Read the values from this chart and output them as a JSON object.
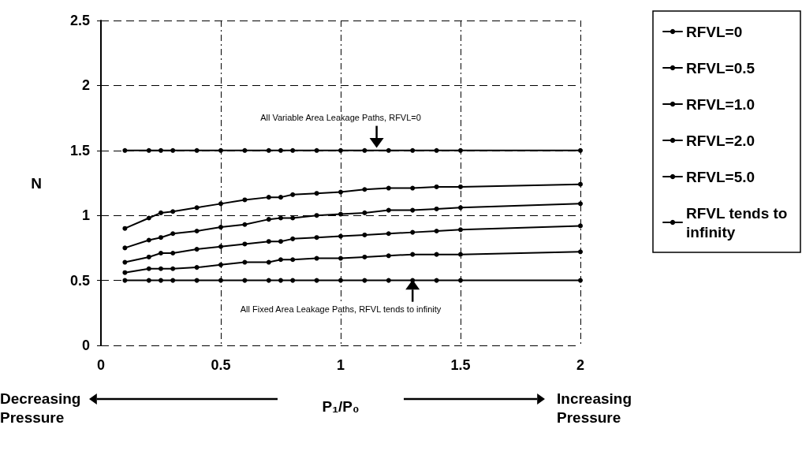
{
  "chart_data": {
    "type": "line",
    "xlabel": "P₁/P₀",
    "ylabel": "N",
    "x": [
      0.1,
      0.2,
      0.25,
      0.3,
      0.4,
      0.5,
      0.6,
      0.7,
      0.75,
      0.8,
      0.9,
      1.0,
      1.1,
      1.2,
      1.3,
      1.4,
      1.5,
      2.0
    ],
    "series": [
      {
        "name": "RFVL=0",
        "color": "#000000",
        "values": [
          1.5,
          1.5,
          1.5,
          1.5,
          1.5,
          1.5,
          1.5,
          1.5,
          1.5,
          1.5,
          1.5,
          1.5,
          1.5,
          1.5,
          1.5,
          1.5,
          1.5,
          1.5
        ]
      },
      {
        "name": "RFVL=0.5",
        "color": "#000000",
        "values": [
          0.9,
          0.98,
          1.02,
          1.03,
          1.06,
          1.09,
          1.12,
          1.14,
          1.14,
          1.16,
          1.17,
          1.18,
          1.2,
          1.21,
          1.21,
          1.22,
          1.22,
          1.24
        ]
      },
      {
        "name": "RFVL=1.0",
        "color": "#000000",
        "values": [
          0.75,
          0.81,
          0.83,
          0.86,
          0.88,
          0.91,
          0.93,
          0.97,
          0.98,
          0.98,
          1.0,
          1.01,
          1.02,
          1.04,
          1.04,
          1.05,
          1.06,
          1.09
        ]
      },
      {
        "name": "RFVL=2.0",
        "color": "#000000",
        "values": [
          0.64,
          0.68,
          0.71,
          0.71,
          0.74,
          0.76,
          0.78,
          0.8,
          0.8,
          0.82,
          0.83,
          0.84,
          0.85,
          0.86,
          0.87,
          0.88,
          0.89,
          0.92
        ]
      },
      {
        "name": "RFVL=5.0",
        "color": "#000000",
        "values": [
          0.56,
          0.59,
          0.59,
          0.59,
          0.6,
          0.62,
          0.64,
          0.64,
          0.66,
          0.66,
          0.67,
          0.67,
          0.68,
          0.69,
          0.7,
          0.7,
          0.7,
          0.72
        ]
      },
      {
        "name": "RFVL tends to infinity",
        "color": "#000000",
        "values": [
          0.5,
          0.5,
          0.5,
          0.5,
          0.5,
          0.5,
          0.5,
          0.5,
          0.5,
          0.5,
          0.5,
          0.5,
          0.5,
          0.5,
          0.5,
          0.5,
          0.5,
          0.5
        ]
      }
    ],
    "xlim": [
      0,
      2
    ],
    "xticks": [
      0,
      0.5,
      1,
      1.5,
      2
    ],
    "ylim": [
      0,
      2.5
    ],
    "yticks": [
      0,
      0.5,
      1,
      1.5,
      2,
      2.5
    ],
    "annotations": [
      "All Variable Area Leakage Paths,  RFVL=0",
      "All Fixed Area Leakage Paths,  RFVL tends to infinity",
      "Decreasing Pressure",
      "Increasing Pressure"
    ],
    "grid": true,
    "legend": "right",
    "marker": "circle",
    "line_style": "solid"
  }
}
